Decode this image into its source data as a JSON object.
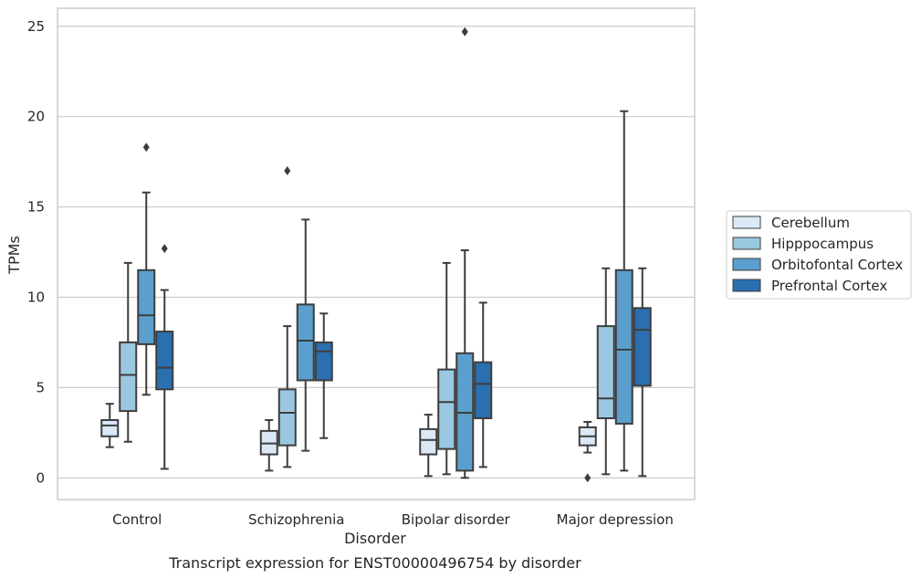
{
  "chart_data": {
    "type": "box",
    "title": "",
    "caption": "Transcript expression for ENST00000496754 by disorder",
    "xlabel": "Disorder",
    "ylabel": "TPMs",
    "ylim": [
      -1.2,
      26
    ],
    "yticks": [
      0,
      5,
      10,
      15,
      20,
      25
    ],
    "grid": "horizontal",
    "legend_position": "right",
    "categories": [
      "Control",
      "Schizophrenia",
      "Bipolar disorder",
      "Major depression"
    ],
    "series": [
      {
        "name": "Cerebellum",
        "color": "#dbe9f6",
        "boxes": [
          {
            "whislo": 1.7,
            "q1": 2.3,
            "med": 2.9,
            "q3": 3.2,
            "whishi": 4.1,
            "fliers": []
          },
          {
            "whislo": 0.4,
            "q1": 1.3,
            "med": 1.9,
            "q3": 2.6,
            "whishi": 3.2,
            "fliers": []
          },
          {
            "whislo": 0.1,
            "q1": 1.3,
            "med": 2.1,
            "q3": 2.7,
            "whishi": 3.5,
            "fliers": []
          },
          {
            "whislo": 1.4,
            "q1": 1.8,
            "med": 2.3,
            "q3": 2.8,
            "whishi": 3.1,
            "fliers": [
              0.0
            ]
          }
        ]
      },
      {
        "name": "Hipppocampus",
        "color": "#9ac8e0",
        "boxes": [
          {
            "whislo": 2.0,
            "q1": 3.7,
            "med": 5.7,
            "q3": 7.5,
            "whishi": 11.9,
            "fliers": []
          },
          {
            "whislo": 0.6,
            "q1": 1.8,
            "med": 3.6,
            "q3": 4.9,
            "whishi": 8.4,
            "fliers": [
              17.0
            ]
          },
          {
            "whislo": 0.2,
            "q1": 1.6,
            "med": 4.2,
            "q3": 6.0,
            "whishi": 11.9,
            "fliers": []
          },
          {
            "whislo": 0.2,
            "q1": 3.3,
            "med": 4.4,
            "q3": 8.4,
            "whishi": 11.6,
            "fliers": []
          }
        ]
      },
      {
        "name": "Orbitofontal Cortex",
        "color": "#5a9fcd",
        "boxes": [
          {
            "whislo": 4.6,
            "q1": 7.4,
            "med": 9.0,
            "q3": 11.5,
            "whishi": 15.8,
            "fliers": [
              18.3
            ]
          },
          {
            "whislo": 1.5,
            "q1": 5.4,
            "med": 7.6,
            "q3": 9.6,
            "whishi": 14.3,
            "fliers": []
          },
          {
            "whislo": 0.0,
            "q1": 0.4,
            "med": 3.6,
            "q3": 6.9,
            "whishi": 12.6,
            "fliers": [
              24.7
            ]
          },
          {
            "whislo": 0.4,
            "q1": 3.0,
            "med": 7.1,
            "q3": 11.5,
            "whishi": 20.3,
            "fliers": []
          }
        ]
      },
      {
        "name": "Prefrontal Cortex",
        "color": "#2a6fb0",
        "boxes": [
          {
            "whislo": 0.5,
            "q1": 4.9,
            "med": 6.1,
            "q3": 8.1,
            "whishi": 10.4,
            "fliers": [
              12.7
            ]
          },
          {
            "whislo": 2.2,
            "q1": 5.4,
            "med": 7.0,
            "q3": 7.5,
            "whishi": 9.1,
            "fliers": []
          },
          {
            "whislo": 0.6,
            "q1": 3.3,
            "med": 5.2,
            "q3": 6.4,
            "whishi": 9.7,
            "fliers": []
          },
          {
            "whislo": 0.1,
            "q1": 5.1,
            "med": 8.2,
            "q3": 9.4,
            "whishi": 11.6,
            "fliers": []
          }
        ]
      }
    ]
  }
}
